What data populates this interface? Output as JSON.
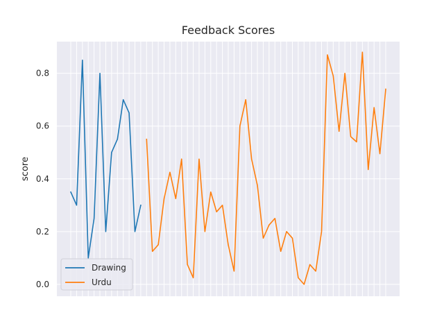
{
  "chart_data": {
    "type": "line",
    "title": "Feedback Scores",
    "xlabel": "",
    "ylabel": "score",
    "ylim": [
      -0.045,
      0.92
    ],
    "yticks": [
      0.0,
      0.2,
      0.4,
      0.6,
      0.8
    ],
    "ytick_labels": [
      "0.0",
      "0.2",
      "0.4",
      "0.6",
      "0.8"
    ],
    "grid": true,
    "legend": "lower-left",
    "x_categories": 55,
    "series": [
      {
        "name": "Drawing",
        "color": "#1f77b4",
        "start_index": 0,
        "values": [
          0.35,
          0.3,
          0.85,
          0.1,
          0.25,
          0.8,
          0.2,
          0.5,
          0.55,
          0.7,
          0.65,
          0.2,
          0.3
        ]
      },
      {
        "name": "Urdu",
        "color": "#ff7f0e",
        "start_index": 13,
        "values": [
          0.55,
          0.125,
          0.15,
          0.325,
          0.425,
          0.325,
          0.475,
          0.075,
          0.025,
          0.475,
          0.2,
          0.35,
          0.275,
          0.3,
          0.15,
          0.05,
          0.6,
          0.7,
          0.475,
          0.375,
          0.175,
          0.225,
          0.25,
          0.125,
          0.2,
          0.175,
          0.025,
          0.0,
          0.075,
          0.05,
          0.2,
          0.87,
          0.79,
          0.58,
          0.8,
          0.56,
          0.54,
          0.88,
          0.435,
          0.67,
          0.495,
          0.74
        ]
      }
    ]
  }
}
